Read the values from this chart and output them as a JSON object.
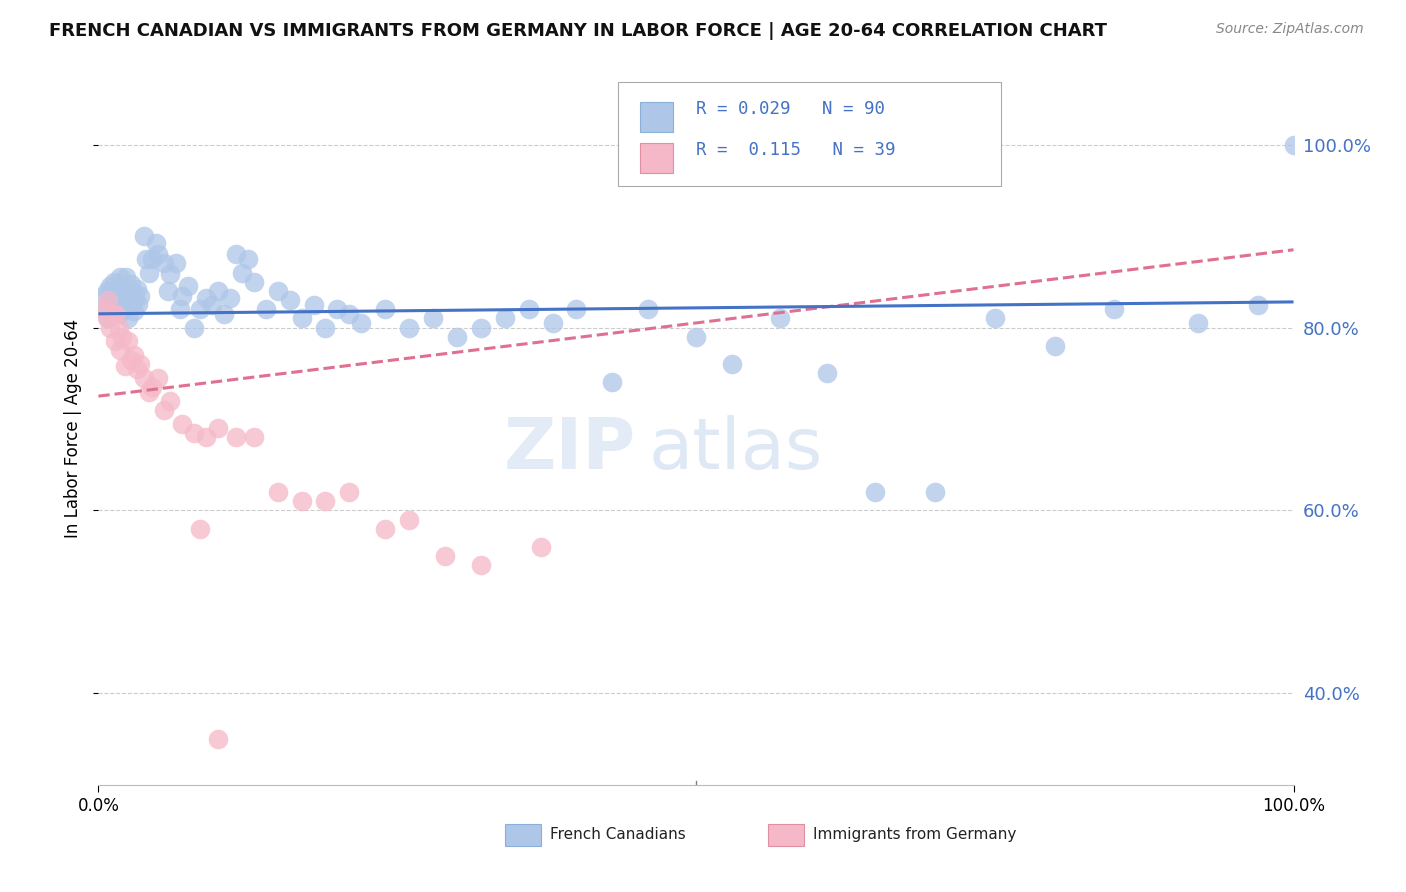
{
  "title": "FRENCH CANADIAN VS IMMIGRANTS FROM GERMANY IN LABOR FORCE | AGE 20-64 CORRELATION CHART",
  "source": "Source: ZipAtlas.com",
  "ylabel": "In Labor Force | Age 20-64",
  "xlim": [
    0.0,
    1.0
  ],
  "ylim": [
    0.3,
    1.08
  ],
  "ytick_labels": [
    "40.0%",
    "60.0%",
    "80.0%",
    "100.0%"
  ],
  "ytick_positions": [
    0.4,
    0.6,
    0.8,
    1.0
  ],
  "xtick_labels": [
    "0.0%",
    "100.0%"
  ],
  "legend1_label": "French Canadians",
  "legend2_label": "Immigrants from Germany",
  "r1": "0.029",
  "n1": "90",
  "r2": "0.115",
  "n2": "39",
  "color_blue_dot": "#aec6e8",
  "color_pink_dot": "#f5b8c8",
  "color_blue_text": "#4472C4",
  "line_blue": "#4472C4",
  "line_pink": "#e07090",
  "background": "#ffffff",
  "grid_color": "#cccccc"
}
